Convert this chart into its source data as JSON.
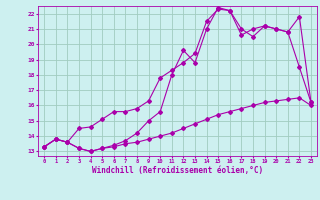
{
  "bg_color": "#cdf0f0",
  "grid_color": "#a0ccc0",
  "line_color": "#aa00aa",
  "xlabel": "Windchill (Refroidissement éolien,°C)",
  "xlim": [
    -0.5,
    23.5
  ],
  "ylim": [
    12.7,
    22.5
  ],
  "xticks": [
    0,
    1,
    2,
    3,
    4,
    5,
    6,
    7,
    8,
    9,
    10,
    11,
    12,
    13,
    14,
    15,
    16,
    17,
    18,
    19,
    20,
    21,
    22,
    23
  ],
  "yticks": [
    13,
    14,
    15,
    16,
    17,
    18,
    19,
    20,
    21,
    22
  ],
  "line1_x": [
    0,
    1,
    2,
    3,
    4,
    5,
    6,
    7,
    8,
    9,
    10,
    11,
    12,
    13,
    14,
    15,
    16,
    17,
    18,
    19,
    20,
    21,
    22,
    23
  ],
  "line1_y": [
    13.3,
    13.8,
    13.6,
    14.5,
    14.6,
    15.1,
    15.6,
    15.6,
    15.8,
    16.3,
    17.8,
    18.3,
    18.8,
    19.4,
    21.5,
    22.3,
    22.2,
    21.0,
    20.5,
    21.2,
    21.0,
    20.8,
    21.8,
    16.2
  ],
  "line2_x": [
    0,
    1,
    2,
    3,
    4,
    5,
    6,
    7,
    8,
    9,
    10,
    11,
    12,
    13,
    14,
    15,
    16,
    17,
    18,
    19,
    20,
    21,
    22,
    23
  ],
  "line2_y": [
    13.3,
    13.8,
    13.6,
    13.2,
    13.0,
    13.2,
    13.4,
    13.7,
    14.2,
    15.0,
    15.6,
    18.0,
    19.6,
    18.8,
    21.0,
    22.4,
    22.2,
    20.6,
    21.0,
    21.2,
    21.0,
    20.8,
    18.5,
    16.2
  ],
  "line3_x": [
    0,
    1,
    2,
    3,
    4,
    5,
    6,
    7,
    8,
    9,
    10,
    11,
    12,
    13,
    14,
    15,
    16,
    17,
    18,
    19,
    20,
    21,
    22,
    23
  ],
  "line3_y": [
    13.3,
    13.8,
    13.6,
    13.2,
    13.0,
    13.2,
    13.3,
    13.5,
    13.6,
    13.8,
    14.0,
    14.2,
    14.5,
    14.8,
    15.1,
    15.4,
    15.6,
    15.8,
    16.0,
    16.2,
    16.3,
    16.4,
    16.5,
    16.0
  ]
}
